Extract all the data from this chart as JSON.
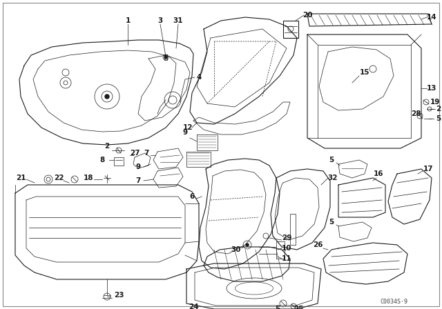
{
  "bg_color": "#ffffff",
  "fg_color": "#1a1a1a",
  "watermark": "C0034S·9",
  "fig_width": 6.4,
  "fig_height": 4.48,
  "dpi": 100
}
